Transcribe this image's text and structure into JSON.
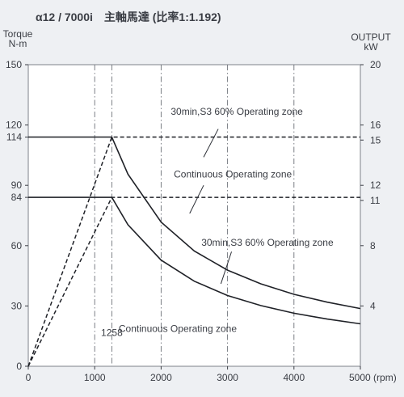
{
  "chart_data": {
    "type": "line",
    "title": "α12 / 7000i　主軸馬達 (比率1:1.192)",
    "x": {
      "range": [
        0,
        5000
      ],
      "ticks": [
        0,
        1000,
        2000,
        3000,
        4000,
        5000
      ],
      "tick_labels": [
        "0",
        "1000",
        "2000",
        "3000",
        "4000",
        "5000 (rpm)"
      ],
      "gridlines": [
        1000,
        1258,
        2000,
        3000,
        4000
      ],
      "base_speed_label": "1258"
    },
    "y_left": {
      "label_line1": "Torque",
      "label_line2": "N-m",
      "range": [
        0,
        150
      ],
      "ticks": [
        0,
        30,
        60,
        84,
        90,
        114,
        120,
        150
      ],
      "tick_labels": [
        "0",
        "30",
        "60",
        "84",
        "90",
        "114",
        "120",
        "150"
      ]
    },
    "y_right": {
      "label_line1": "OUTPUT",
      "label_line2": "kW",
      "range": [
        0,
        20
      ],
      "ticks": [
        4,
        8,
        11,
        12,
        15,
        16,
        20
      ],
      "tick_labels": [
        "4",
        "8",
        "11",
        "12",
        "15",
        "16",
        "20"
      ]
    },
    "series": [
      {
        "id": "torque-s3",
        "style": "solid",
        "x": [
          0,
          1258,
          1500,
          2000,
          2500,
          3000,
          3500,
          4000,
          4500,
          5000
        ],
        "y": [
          114,
          114,
          95.6,
          71.7,
          57.3,
          47.8,
          41.0,
          35.8,
          31.9,
          28.7
        ]
      },
      {
        "id": "torque-continuous",
        "style": "solid",
        "x": [
          0,
          1258,
          1500,
          2000,
          2500,
          3000,
          3500,
          4000,
          4500,
          5000
        ],
        "y": [
          84,
          84,
          70.4,
          52.8,
          42.3,
          35.2,
          30.2,
          26.4,
          23.5,
          21.1
        ]
      },
      {
        "id": "output-s3",
        "style": "dashed",
        "x": [
          0,
          1258,
          5000
        ],
        "y": [
          0,
          114,
          114
        ]
      },
      {
        "id": "output-continuous",
        "style": "dashed",
        "x": [
          0,
          1258,
          5000
        ],
        "y": [
          0,
          84,
          84
        ]
      }
    ],
    "annotations": [
      {
        "id": "annotation-s3-upper",
        "text": "30min,S3 60% Operating zone",
        "at": [
          3140,
          125
        ],
        "pointer_from": [
          2860,
          118
        ],
        "pointer_to": [
          2640,
          104
        ]
      },
      {
        "id": "annotation-continuous-upper",
        "text": "Continuous Operating zone",
        "at": [
          3080,
          94
        ],
        "pointer_from": [
          2640,
          90
        ],
        "pointer_to": [
          2430,
          76
        ]
      },
      {
        "id": "annotation-s3-lower",
        "text": "30min,S3 60% Operating zone",
        "at": [
          3600,
          60
        ],
        "pointer_from": [
          3060,
          57
        ],
        "pointer_to": [
          2900,
          41
        ]
      },
      {
        "id": "annotation-continuous-lower",
        "text": "Continuous Operating zone",
        "at": [
          2250,
          17
        ],
        "pointer_from": null,
        "pointer_to": null
      }
    ],
    "grid": true,
    "legend": "none"
  }
}
